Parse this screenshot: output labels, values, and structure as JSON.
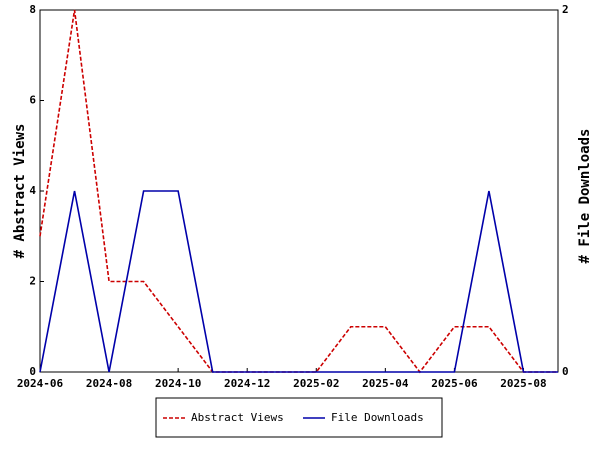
{
  "chart_data": {
    "type": "line",
    "categories": [
      "2024-06",
      null,
      "2024-08",
      null,
      "2024-10",
      null,
      "2024-12",
      null,
      "2025-02",
      null,
      "2025-04",
      null,
      "2025-06",
      null,
      "2025-08",
      null
    ],
    "series": [
      {
        "name": "Abstract Views",
        "color": "#cc0000",
        "dash": true,
        "values": [
          3,
          8,
          2,
          2,
          1,
          0,
          0,
          0,
          0,
          1,
          1,
          0,
          1,
          1,
          0,
          0
        ]
      },
      {
        "name": "File Downloads",
        "color": "#0000aa",
        "axis": "y2",
        "values": [
          0,
          1,
          0,
          1,
          1,
          0,
          0,
          0,
          0,
          0,
          0,
          0,
          0,
          1,
          0,
          0
        ]
      }
    ],
    "ylabel": "# Abstract Views",
    "y2label": "# File Downloads",
    "ylim": [
      0,
      8
    ],
    "yticks": [
      0,
      2,
      4,
      6,
      8
    ],
    "y2lim": [
      0,
      2
    ],
    "y2ticks": [
      0,
      2
    ],
    "legend": "bottom"
  }
}
